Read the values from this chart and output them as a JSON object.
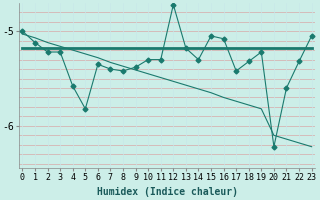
{
  "x": [
    0,
    1,
    2,
    3,
    4,
    5,
    6,
    7,
    8,
    9,
    10,
    11,
    12,
    13,
    14,
    15,
    16,
    17,
    18,
    19,
    20,
    21,
    22,
    23
  ],
  "y_main": [
    -5.0,
    -5.12,
    -5.22,
    -5.22,
    -5.58,
    -5.82,
    -5.35,
    -5.4,
    -5.42,
    -5.38,
    -5.3,
    -5.3,
    -4.72,
    -5.18,
    -5.3,
    -5.05,
    -5.08,
    -5.42,
    -5.32,
    -5.22,
    -6.22,
    -5.6,
    -5.32,
    -5.05
  ],
  "y_horizontal": [
    -5.18,
    -5.18,
    -5.18,
    -5.18,
    -5.18,
    -5.18,
    -5.18,
    -5.18,
    -5.18,
    -5.18,
    -5.18,
    -5.18,
    -5.18,
    -5.18,
    -5.18,
    -5.18,
    -5.18,
    -5.18,
    -5.18,
    -5.18,
    -5.18,
    -5.18,
    -5.18,
    -5.18
  ],
  "y_diagonal": [
    -5.03,
    -5.07,
    -5.12,
    -5.16,
    -5.2,
    -5.24,
    -5.28,
    -5.33,
    -5.37,
    -5.41,
    -5.45,
    -5.49,
    -5.53,
    -5.57,
    -5.61,
    -5.65,
    -5.7,
    -5.74,
    -5.78,
    -5.82,
    -6.1,
    -6.14,
    -6.18,
    -6.22
  ],
  "color": "#1a7a6e",
  "bg_color": "#cceee8",
  "grid_color_h": "#e8b8b8",
  "grid_color_v": "#c8e8e8",
  "xlabel": "Humidex (Indice chaleur)",
  "ylabel_ticks": [
    "-5",
    "-6"
  ],
  "yticks": [
    -5.0,
    -6.0
  ],
  "xlim": [
    0,
    23
  ],
  "ylim": [
    -6.45,
    -4.7
  ],
  "xlabel_fontsize": 7,
  "tick_fontsize": 7
}
